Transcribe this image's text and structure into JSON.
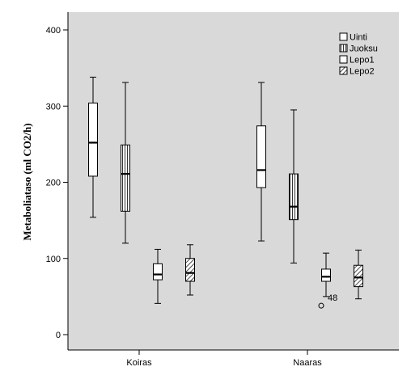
{
  "chart_data": {
    "type": "boxplot",
    "ylabel": "Metaboliataso (ml CO2/h)",
    "xlabel": "",
    "ylim": [
      -20,
      420
    ],
    "yticks": [
      0,
      100,
      200,
      300,
      400
    ],
    "categories": [
      "Koiras",
      "Naaras"
    ],
    "legend_position": "top-right",
    "grid": false,
    "background_color": "#d9d9d9",
    "series": [
      {
        "name": "Uinti",
        "pattern": "none",
        "boxes": [
          {
            "min": 154,
            "q1": 208,
            "median": 252,
            "q3": 304,
            "max": 338
          },
          {
            "min": 123,
            "q1": 193,
            "median": 216,
            "q3": 274,
            "max": 331
          }
        ]
      },
      {
        "name": "Juoksu",
        "pattern": "vertical-lines",
        "boxes": [
          {
            "min": 120,
            "q1": 162,
            "median": 211,
            "q3": 249,
            "max": 331
          },
          {
            "min": 94,
            "q1": 151,
            "median": 168,
            "q3": 211,
            "max": 295
          }
        ]
      },
      {
        "name": "Lepo1",
        "pattern": "none",
        "boxes": [
          {
            "min": 41,
            "q1": 72,
            "median": 79,
            "q3": 93,
            "max": 112
          },
          {
            "min": 50,
            "q1": 70,
            "median": 76,
            "q3": 86,
            "max": 107,
            "outliers": [
              {
                "value": 38,
                "label": "48"
              }
            ]
          }
        ]
      },
      {
        "name": "Lepo2",
        "pattern": "diagonal-lines",
        "boxes": [
          {
            "min": 52,
            "q1": 70,
            "median": 81,
            "q3": 100,
            "max": 118
          },
          {
            "min": 47,
            "q1": 63,
            "median": 75,
            "q3": 91,
            "max": 111
          }
        ]
      }
    ]
  }
}
